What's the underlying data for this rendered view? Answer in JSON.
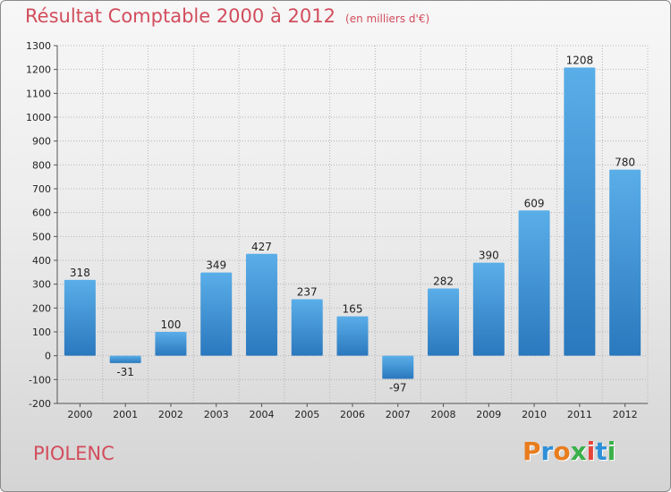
{
  "title": "Résultat Comptable 2000 à 2012",
  "subtitle": "(en milliers d'€)",
  "commune": "PIOLENC",
  "logo": {
    "text": "Proxiti",
    "letter_colors": [
      "#e87d1e",
      "#2f8fd8",
      "#e87d1e",
      "#3ab04a",
      "#e8443a",
      "#2f8fd8",
      "#3ab04a"
    ]
  },
  "colors": {
    "title": "#d24d5c",
    "bar_top": "#5aaee8",
    "bar_bottom": "#2a78be",
    "grid": "#b5b5b5"
  },
  "chart_data": {
    "type": "bar",
    "categories": [
      "2000",
      "2001",
      "2002",
      "2003",
      "2004",
      "2005",
      "2006",
      "2007",
      "2008",
      "2009",
      "2010",
      "2011",
      "2012"
    ],
    "values": [
      318,
      -31,
      100,
      349,
      427,
      237,
      165,
      -97,
      282,
      390,
      609,
      1208,
      780
    ],
    "ylim": [
      -200,
      1300
    ],
    "yticks": [
      -200,
      -100,
      0,
      100,
      200,
      300,
      400,
      500,
      600,
      700,
      800,
      900,
      1000,
      1100,
      1200,
      1300
    ],
    "grid": true,
    "xlabel": "",
    "ylabel": ""
  }
}
